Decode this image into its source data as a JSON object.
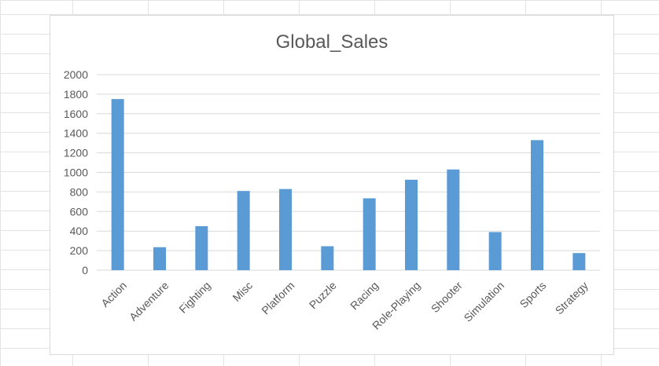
{
  "chart_data": {
    "type": "bar",
    "title": "Global_Sales",
    "categories": [
      "Action",
      "Adventure",
      "Fighting",
      "Misc",
      "Platform",
      "Puzzle",
      "Racing",
      "Role-Playing",
      "Shooter",
      "Simulation",
      "Sports",
      "Strategy"
    ],
    "series": [
      {
        "values": [
          1750,
          235,
          450,
          810,
          830,
          245,
          735,
          925,
          1030,
          390,
          1330,
          175
        ]
      }
    ],
    "y_ticks": [
      "0",
      "200",
      "400",
      "600",
      "800",
      "1000",
      "1200",
      "1400",
      "1600",
      "1800",
      "2000"
    ],
    "xlabel": "",
    "ylabel": "",
    "ylim": [
      0,
      2000
    ],
    "grid": true,
    "legend": "none",
    "colors": {
      "bar": "#5b9bd5",
      "gridline": "#d9d9d9",
      "text": "#595959"
    }
  }
}
